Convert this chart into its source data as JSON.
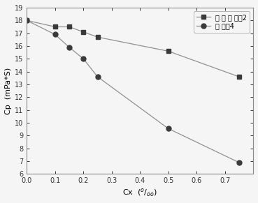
{
  "series1_label": "对 照 降 粘剂2",
  "series2_label": "降 粘剂4",
  "series1_x": [
    0.0,
    0.1,
    0.15,
    0.2,
    0.25,
    0.5,
    0.75
  ],
  "series1_y": [
    18.0,
    17.5,
    17.5,
    17.1,
    16.7,
    15.6,
    13.6
  ],
  "series2_x": [
    0.0,
    0.1,
    0.15,
    0.2,
    0.25,
    0.5,
    0.75
  ],
  "series2_y": [
    18.0,
    16.9,
    15.9,
    15.0,
    13.6,
    9.55,
    6.9
  ],
  "xlabel": "Cx  ($^o/_{\\infty}$)",
  "ylabel": "Cp  (mPa*S)",
  "xlim": [
    0.0,
    0.8
  ],
  "ylim": [
    6,
    19
  ],
  "xticks": [
    0.0,
    0.1,
    0.2,
    0.3,
    0.4,
    0.5,
    0.6,
    0.7
  ],
  "yticks": [
    6,
    7,
    8,
    9,
    10,
    11,
    12,
    13,
    14,
    15,
    16,
    17,
    18,
    19
  ],
  "line_color": "#909090",
  "marker1": "s",
  "marker2": "o",
  "marker_color": "#3a3a3a",
  "marker_size": 5,
  "bg_color": "#f5f5f5",
  "legend_loc": "upper right"
}
